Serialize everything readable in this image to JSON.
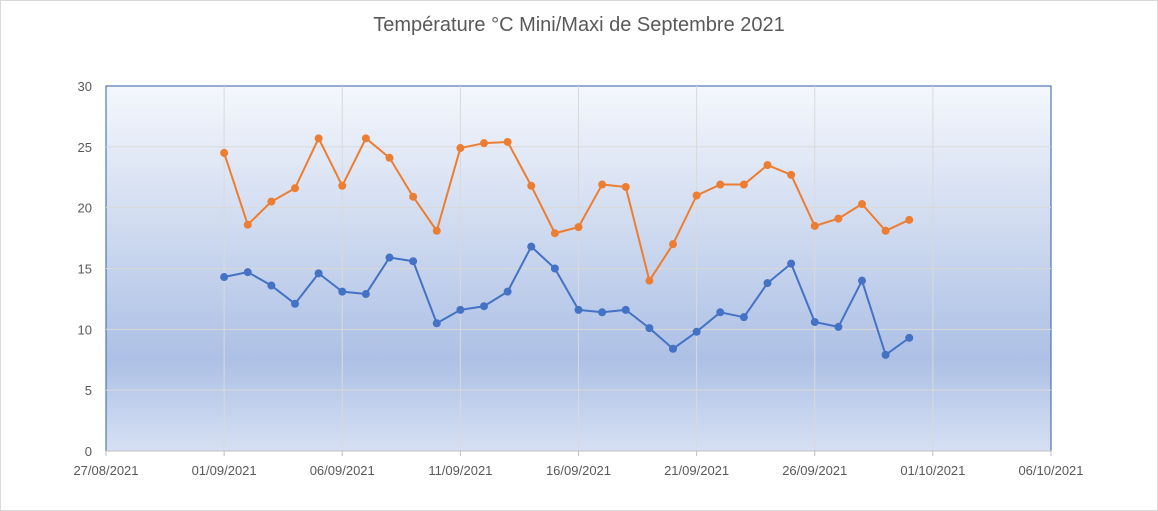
{
  "chart_data": {
    "type": "line",
    "title": "Température °C Mini/Maxi de Septembre 2021",
    "xlabel": "",
    "ylabel": "",
    "ylim": [
      0,
      30
    ],
    "yticks": [
      0,
      5,
      10,
      15,
      20,
      25,
      30
    ],
    "xlim": [
      "2021-08-27",
      "2021-10-06"
    ],
    "xticks": [
      "27/08/2021",
      "01/09/2021",
      "06/09/2021",
      "11/09/2021",
      "16/09/2021",
      "21/09/2021",
      "26/09/2021",
      "01/10/2021",
      "06/10/2021"
    ],
    "grid": true,
    "legend": "none",
    "x": [
      "2021-09-01",
      "2021-09-02",
      "2021-09-03",
      "2021-09-04",
      "2021-09-05",
      "2021-09-06",
      "2021-09-07",
      "2021-09-08",
      "2021-09-09",
      "2021-09-10",
      "2021-09-11",
      "2021-09-12",
      "2021-09-13",
      "2021-09-14",
      "2021-09-15",
      "2021-09-16",
      "2021-09-17",
      "2021-09-18",
      "2021-09-19",
      "2021-09-20",
      "2021-09-21",
      "2021-09-22",
      "2021-09-23",
      "2021-09-24",
      "2021-09-25",
      "2021-09-26",
      "2021-09-27",
      "2021-09-28",
      "2021-09-29",
      "2021-09-30"
    ],
    "series": [
      {
        "color": "#ed7d31",
        "values": [
          24.5,
          18.6,
          20.5,
          21.6,
          25.7,
          21.8,
          25.7,
          24.1,
          20.9,
          18.1,
          24.9,
          25.3,
          25.4,
          21.8,
          17.9,
          18.4,
          21.9,
          21.7,
          14.0,
          17.0,
          21.0,
          21.9,
          21.9,
          23.5,
          22.7,
          18.5,
          19.1,
          20.3,
          18.1,
          19.0
        ]
      },
      {
        "color": "#4472c4",
        "values": [
          14.3,
          14.7,
          13.6,
          12.1,
          14.6,
          13.1,
          12.9,
          15.9,
          15.6,
          10.5,
          11.6,
          11.9,
          13.1,
          16.8,
          15.0,
          11.6,
          11.4,
          11.6,
          10.1,
          8.4,
          9.8,
          11.4,
          11.0,
          13.8,
          15.4,
          10.6,
          10.2,
          14.0,
          7.9,
          9.3
        ]
      }
    ]
  }
}
